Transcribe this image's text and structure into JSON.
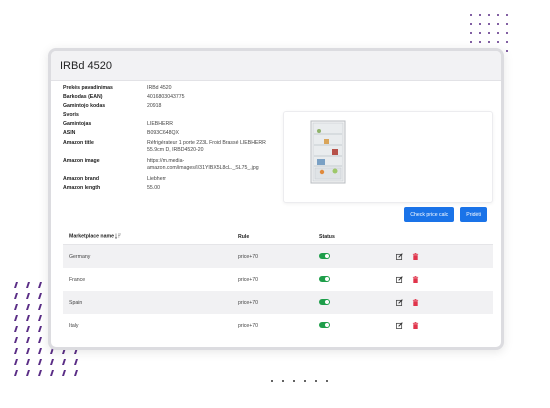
{
  "page": {
    "title": "IRBd 4520"
  },
  "product_info": [
    {
      "label": "Prekės pavadinimas",
      "value": "IRBd 4520"
    },
    {
      "label": "Barkodas (EAN)",
      "value": "4016803043775"
    },
    {
      "label": "Gamintojo kodas",
      "value": "20918"
    },
    {
      "label": "Svoris",
      "value": ""
    },
    {
      "label": "Gamintojas",
      "value": "LIEBHERR"
    },
    {
      "label": "ASIN",
      "value": "B093C648QX"
    },
    {
      "label": "Amazon title",
      "value": "Réfrigérateur 1 porte 223L Froid Brassé LIEBHERR 55.9cm D, IRBD4520-20"
    },
    {
      "label": "Amazon image",
      "value": "https://m.media-amazon.com/images/I/31YIBX5L8cL._SL75_.jpg"
    },
    {
      "label": "Amazon brand",
      "value": "Liebherr"
    },
    {
      "label": "Amazon length",
      "value": "55.00"
    }
  ],
  "buttons": {
    "check_price": "Check price calc",
    "add": "Pridėti"
  },
  "marketplaces": {
    "headers": {
      "name": "Marketplace name",
      "rule": "Rule",
      "status": "Status"
    },
    "rows": [
      {
        "name": "Germany",
        "rule": "price+70",
        "status_on": true
      },
      {
        "name": "France",
        "rule": "price+70",
        "status_on": true
      },
      {
        "name": "Spain",
        "rule": "price+70",
        "status_on": true
      },
      {
        "name": "Italy",
        "rule": "price+70",
        "status_on": true
      }
    ]
  },
  "colors": {
    "primary": "#1a73e8",
    "toggle_on": "#1e9e4a",
    "delete": "#e0344b",
    "decor": "#5a2d86"
  },
  "icons": {
    "edit": "edit-icon",
    "delete": "trash-icon",
    "sort": "sort-icon"
  }
}
